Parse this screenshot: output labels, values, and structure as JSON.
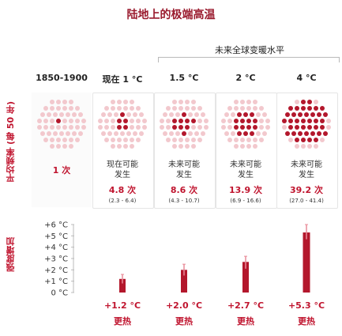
{
  "title": "陆地上的极端高温",
  "future_header": "未来全球变暖水平",
  "frequency_axis_title": "平均频率 (每 50 年)",
  "intensity_axis_title": "强度增加",
  "colors": {
    "accent": "#c0152f",
    "dot_solid": "#b3172c",
    "dot_faint": "#f2c8cd",
    "bar": "#b3172c",
    "error_bar": "#e88b98"
  },
  "columns": [
    {
      "header": "1850-1900",
      "frequency_label": "",
      "frequency_value": "1 次",
      "frequency_range": "",
      "intensity_value": "",
      "intensity_label": ""
    },
    {
      "header": "现在 1 °C",
      "frequency_label": "现在可能\n发生",
      "frequency_value": "4.8 次",
      "frequency_range": "(2.3 - 6.4)",
      "intensity_value": "+1.2 °C",
      "intensity_label": "更热"
    },
    {
      "header": "1.5 °C",
      "frequency_label": "未来可能\n发生",
      "frequency_value": "8.6 次",
      "frequency_range": "(4.3 - 10.7)",
      "intensity_value": "+2.0 °C",
      "intensity_label": "更热"
    },
    {
      "header": "2 °C",
      "frequency_label": "未来可能\n发生",
      "frequency_value": "13.9 次",
      "frequency_range": "(6.9 - 16.6)",
      "intensity_value": "+2.7 °C",
      "intensity_label": "更热"
    },
    {
      "header": "4 °C",
      "frequency_label": "未来可能\n发生",
      "frequency_value": "39.2 次",
      "frequency_range": "(27.0 - 41.4)",
      "intensity_value": "+5.3 °C",
      "intensity_label": "更热"
    }
  ],
  "chart_data": [
    {
      "type": "table",
      "title": "",
      "ylabel": "平均频率 (每 50 年)",
      "categories": [
        "1850-1900",
        "现在 1 °C",
        "1.5 °C",
        "2 °C",
        "4 °C"
      ],
      "values": [
        1,
        4.8,
        8.6,
        13.9,
        39.2
      ],
      "ranges": [
        null,
        [
          2.3,
          6.4
        ],
        [
          4.3,
          10.7
        ],
        [
          6.9,
          16.6
        ],
        [
          27.0,
          41.4
        ]
      ],
      "dots_total": 50
    },
    {
      "type": "bar",
      "title": "",
      "ylabel": "强度增加",
      "categories": [
        "1850-1900",
        "现在 1 °C",
        "1.5 °C",
        "2 °C",
        "4 °C"
      ],
      "values": [
        0,
        1.2,
        2.0,
        2.7,
        5.3
      ],
      "error_low": [
        null,
        0.8,
        1.5,
        2.1,
        4.7
      ],
      "error_high": [
        null,
        1.6,
        2.5,
        3.2,
        6.0
      ],
      "ylim": [
        0,
        6
      ],
      "yticks": [
        "+6 °C",
        "+5 °C",
        "+4 °C",
        "+3 °C",
        "+2 °C",
        "+1 °C",
        "0 °C"
      ]
    }
  ]
}
